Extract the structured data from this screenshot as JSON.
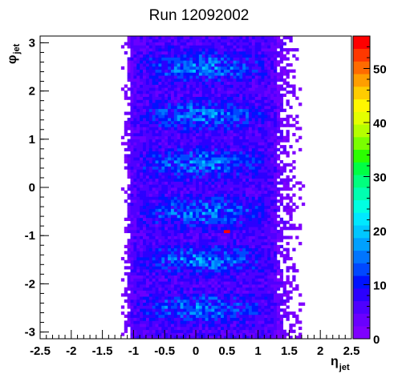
{
  "chart_data": {
    "type": "heatmap",
    "title": "Run 12092002",
    "xlabel": "η",
    "xlabel_sub": "jet",
    "ylabel": "φ",
    "ylabel_sub": "jet",
    "xlim": [
      -2.5,
      2.5
    ],
    "ylim": [
      -3.14,
      3.14
    ],
    "x_ticks": [
      -2.5,
      -2,
      -1.5,
      -1,
      -0.5,
      0,
      0.5,
      1,
      1.5,
      2,
      2.5
    ],
    "x_tick_labels": [
      "-2.5",
      "-2",
      "-1.5",
      "-1",
      "-0.5",
      "0",
      "0.5",
      "1",
      "1.5",
      "2",
      "2.5"
    ],
    "y_ticks": [
      -3,
      -2,
      -1,
      0,
      1,
      2,
      3
    ],
    "y_tick_labels": [
      "-3",
      "-2",
      "-1",
      "0",
      "1",
      "2",
      "3"
    ],
    "z_range": [
      0,
      56
    ],
    "z_ticks": [
      0,
      10,
      20,
      30,
      40,
      50
    ],
    "z_tick_labels": [
      "0",
      "10",
      "20",
      "30",
      "40",
      "50"
    ],
    "bins": {
      "nx": 100,
      "ny": 100
    },
    "distribution": {
      "eta_core": [
        -1.05,
        1.3
      ],
      "eta_tail": [
        -1.2,
        1.75
      ],
      "phi_range": [
        -3.14,
        3.14
      ],
      "phi_bands_high": [
        -2.5,
        -1.5,
        -0.5,
        0.5,
        1.5,
        2.5
      ],
      "typical_counts": [
        3,
        22
      ],
      "hotspot": {
        "eta": 0.5,
        "phi": -0.9,
        "count": 56
      }
    },
    "grid": false,
    "legend": "none",
    "palette": [
      "#7f00ff",
      "#6a00ff",
      "#4e00ff",
      "#2b00ff",
      "#0012ff",
      "#0048ff",
      "#0075ff",
      "#00a0ff",
      "#00c7ff",
      "#00e8ff",
      "#00ffe2",
      "#00ffb0",
      "#00ff7e",
      "#00ff44",
      "#2bff00",
      "#7aff00",
      "#b5ff00",
      "#e4ff00",
      "#fff700",
      "#ffcc00",
      "#ff9e00",
      "#ff6b00",
      "#ff3800",
      "#ff0000"
    ]
  }
}
